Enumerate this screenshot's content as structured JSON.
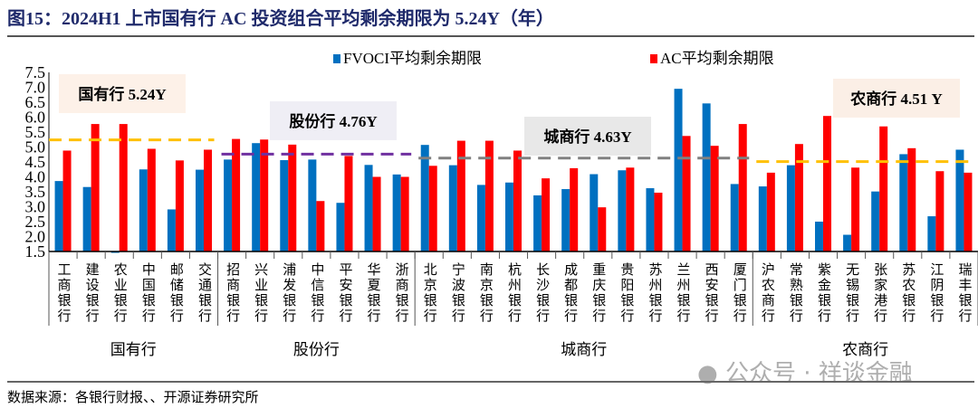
{
  "title": "图15：2024H1 上市国有行 AC 投资组合平均剩余期限为 5.24Y（年）",
  "source": "数据来源：各银行财报、、开源证券研究所",
  "watermark": "公众号 · 祥谈金融",
  "chart_data": {
    "type": "bar",
    "title": "图15：2024H1 上市国有行 AC 投资组合平均剩余期限为 5.24Y（年）",
    "ylim": [
      1.5,
      7.5
    ],
    "yticks": [
      "1.5",
      "2.0",
      "2.5",
      "3.0",
      "3.5",
      "4.0",
      "4.5",
      "5.0",
      "5.5",
      "6.0",
      "6.5",
      "7.0",
      "7.5"
    ],
    "grid": false,
    "legend_position": "top",
    "categories": [
      "工商银行",
      "建设银行",
      "农业银行",
      "中国银行",
      "邮储银行",
      "交通银行",
      "招商银行",
      "兴业银行",
      "浦发银行",
      "中信银行",
      "平安银行",
      "华夏银行",
      "浙商银行",
      "北京银行",
      "宁波银行",
      "南京银行",
      "杭州银行",
      "长沙银行",
      "成都银行",
      "重庆银行",
      "贵阳银行",
      "苏州银行",
      "兰州银行",
      "西安银行",
      "厦门银行",
      "沪农商行",
      "常熟银行",
      "紫金银行",
      "无锡银行",
      "张家港行",
      "苏农银行",
      "江阴银行",
      "瑞丰银行"
    ],
    "groups": [
      {
        "name": "国有行",
        "count": 6,
        "avg": 5.24,
        "avg_label": "国有行 5.24Y",
        "line_color": "#ffc000",
        "box_color": "#fdf1e8"
      },
      {
        "name": "股份行",
        "count": 7,
        "avg": 4.76,
        "avg_label": "股份行 4.76Y",
        "line_color": "#7030a0",
        "box_color": "#efeef5"
      },
      {
        "name": "城商行",
        "count": 12,
        "avg": 4.63,
        "avg_label": "城商行 4.63Y",
        "line_color": "#808080",
        "box_color": "#e8e8e8"
      },
      {
        "name": "农商行",
        "count": 8,
        "avg": 4.51,
        "avg_label": "农商行 4.51 Y",
        "line_color": "#ffc000",
        "box_color": "#fbefe6"
      }
    ],
    "series": [
      {
        "name": "FVOCI平均剩余期限",
        "color": "#0070c0",
        "values": [
          3.86,
          3.66,
          1.47,
          4.25,
          2.91,
          4.24,
          4.58,
          5.13,
          4.56,
          4.58,
          3.13,
          4.4,
          4.08,
          5.07,
          4.39,
          3.73,
          3.81,
          3.38,
          3.59,
          4.09,
          4.22,
          3.62,
          6.95,
          6.46,
          3.76,
          3.68,
          4.39,
          2.5,
          2.06,
          3.51,
          4.76,
          2.68,
          4.91
        ]
      },
      {
        "name": "AC平均剩余期限",
        "color": "#ff0000",
        "values": [
          4.88,
          5.77,
          5.77,
          4.94,
          4.55,
          4.91,
          5.27,
          5.25,
          5.08,
          3.19,
          4.7,
          4.0,
          4.0,
          4.37,
          5.21,
          5.21,
          4.88,
          3.95,
          4.29,
          2.98,
          4.31,
          3.47,
          5.37,
          5.04,
          5.77,
          4.14,
          5.1,
          6.04,
          4.31,
          5.69,
          4.96,
          4.19,
          4.14
        ]
      }
    ]
  }
}
